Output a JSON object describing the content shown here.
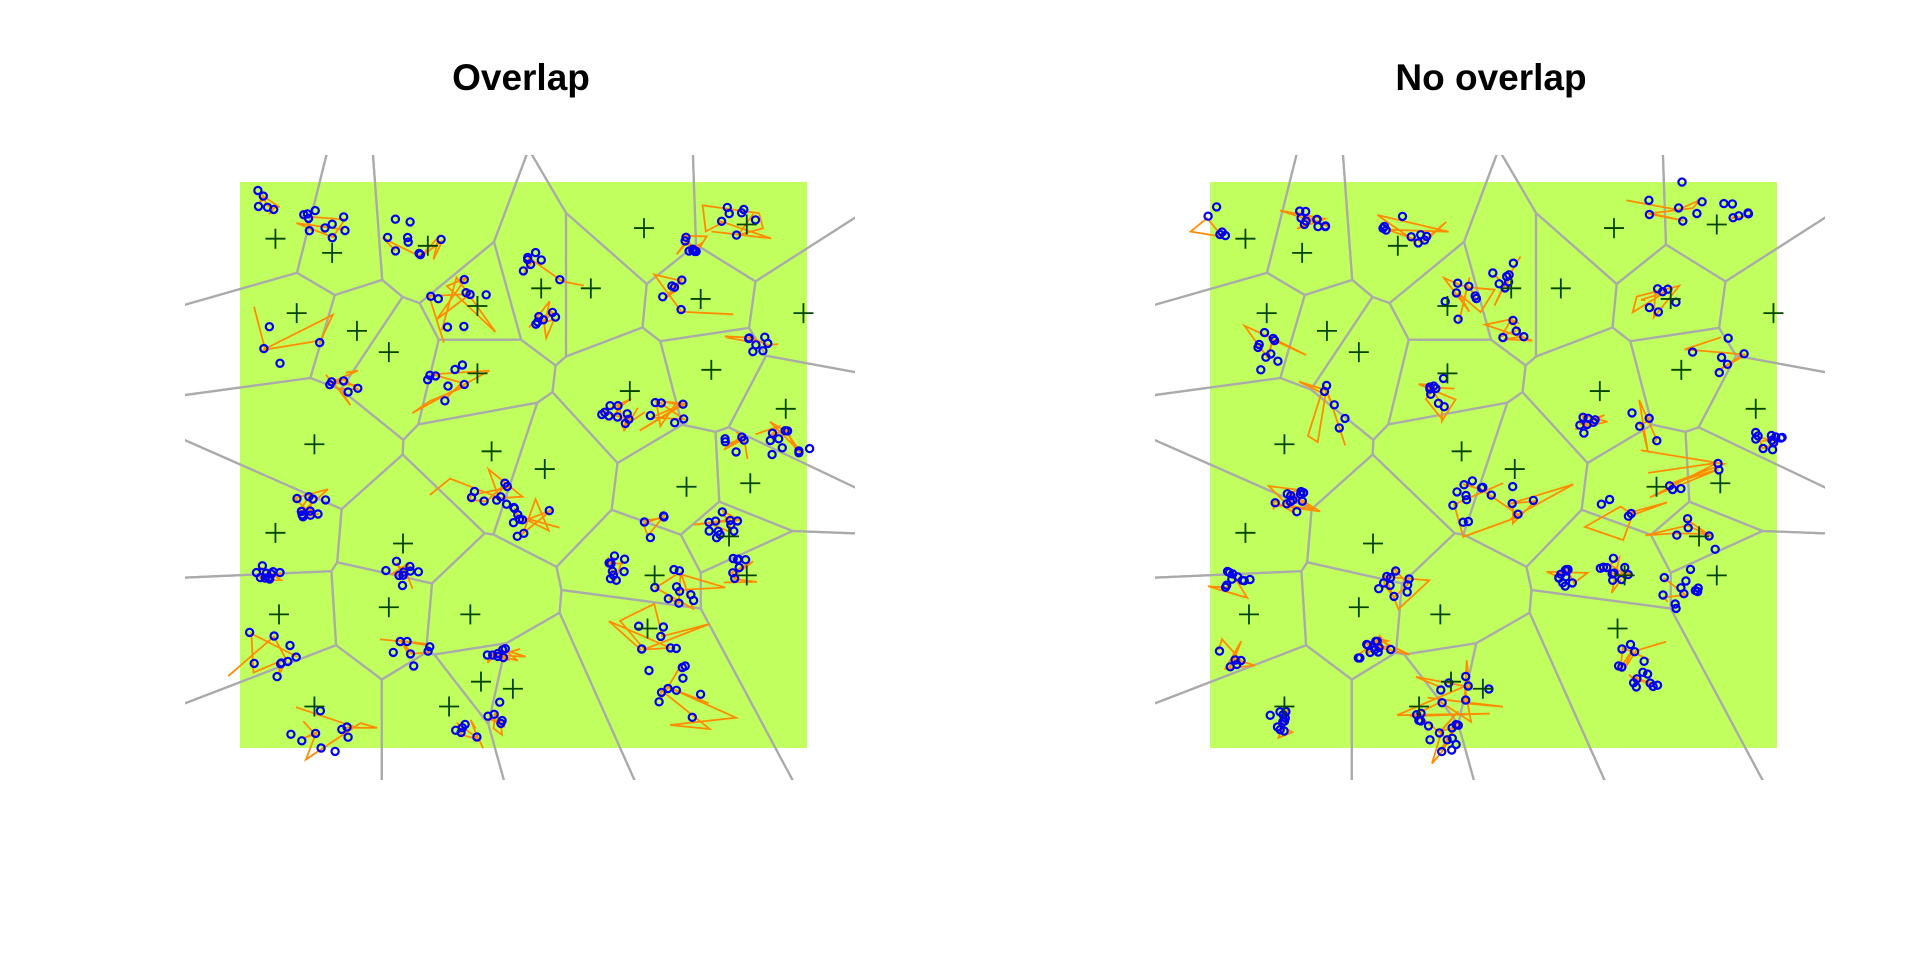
{
  "figure": {
    "background": "#ffffff",
    "region_fill": "#c0ff5e",
    "cell_edge_color": "#aaaaaa",
    "path_color": "#ff8c00",
    "point_color": "#0000ee",
    "center_marker_color": "#004400"
  },
  "panels": [
    {
      "title": "Overlap",
      "seed": 11,
      "centers": [
        [
          1,
          1.6
        ],
        [
          2.6,
          2.0
        ],
        [
          5.3,
          1.8
        ],
        [
          9.9,
          3.0
        ],
        [
          11.4,
          1.3
        ],
        [
          14.3,
          1.2
        ],
        [
          1.6,
          3.7
        ],
        [
          3.3,
          4.2
        ],
        [
          6.7,
          3.5
        ],
        [
          8.5,
          3.0
        ],
        [
          13.0,
          3.3
        ],
        [
          15.9,
          3.7
        ],
        [
          4.2,
          4.8
        ],
        [
          6.7,
          5.4
        ],
        [
          11.0,
          5.9
        ],
        [
          13.3,
          5.3
        ],
        [
          15.4,
          6.4
        ],
        [
          2.1,
          7.4
        ],
        [
          7.1,
          7.6
        ],
        [
          8.6,
          8.1
        ],
        [
          12.6,
          8.6
        ],
        [
          14.4,
          8.5
        ],
        [
          1.0,
          9.9
        ],
        [
          4.6,
          10.2
        ],
        [
          11.7,
          11.1
        ],
        [
          13.8,
          10.0
        ],
        [
          14.3,
          11.1
        ],
        [
          1.1,
          12.2
        ],
        [
          4.2,
          12.0
        ],
        [
          6.5,
          12.2
        ],
        [
          11.5,
          12.6
        ],
        [
          6.8,
          14.1
        ],
        [
          2.1,
          14.8
        ],
        [
          5.9,
          14.8
        ],
        [
          7.7,
          14.3
        ]
      ],
      "clusters": [
        [
          0.6,
          0.6
        ],
        [
          2.3,
          1.2
        ],
        [
          5.0,
          1.5
        ],
        [
          8.5,
          2.5
        ],
        [
          12.7,
          1.8
        ],
        [
          14.1,
          1.0
        ],
        [
          1.4,
          4.6
        ],
        [
          2.9,
          5.6
        ],
        [
          6.0,
          5.7
        ],
        [
          8.7,
          3.8
        ],
        [
          12.6,
          3.2
        ],
        [
          14.5,
          4.6
        ],
        [
          6.1,
          3.4
        ],
        [
          10.6,
          6.6
        ],
        [
          12.1,
          6.5
        ],
        [
          14.0,
          7.4
        ],
        [
          15.5,
          7.4
        ],
        [
          2.0,
          9.1
        ],
        [
          7.0,
          8.9
        ],
        [
          8.0,
          9.3
        ],
        [
          11.8,
          9.6
        ],
        [
          13.6,
          9.7
        ],
        [
          0.8,
          11.0
        ],
        [
          4.6,
          11.1
        ],
        [
          10.6,
          10.9
        ],
        [
          12.4,
          11.4
        ],
        [
          14.1,
          10.9
        ],
        [
          0.8,
          13.3
        ],
        [
          4.8,
          13.2
        ],
        [
          7.3,
          13.4
        ],
        [
          11.5,
          13.1
        ],
        [
          12.4,
          14.4
        ],
        [
          2.3,
          15.4
        ],
        [
          6.4,
          15.6
        ],
        [
          7.3,
          15.0
        ]
      ]
    },
    {
      "title": "No overlap",
      "seed": 23,
      "centers": [
        [
          1,
          1.6
        ],
        [
          2.6,
          2.0
        ],
        [
          5.3,
          1.8
        ],
        [
          9.9,
          3.0
        ],
        [
          11.4,
          1.3
        ],
        [
          14.3,
          1.2
        ],
        [
          1.6,
          3.7
        ],
        [
          3.3,
          4.2
        ],
        [
          6.7,
          3.5
        ],
        [
          8.5,
          3.0
        ],
        [
          13.0,
          3.3
        ],
        [
          15.9,
          3.7
        ],
        [
          4.2,
          4.8
        ],
        [
          6.7,
          5.4
        ],
        [
          11.0,
          5.9
        ],
        [
          13.3,
          5.3
        ],
        [
          15.4,
          6.4
        ],
        [
          2.1,
          7.4
        ],
        [
          7.1,
          7.6
        ],
        [
          8.6,
          8.1
        ],
        [
          12.6,
          8.6
        ],
        [
          14.4,
          8.5
        ],
        [
          1.0,
          9.9
        ],
        [
          4.6,
          10.2
        ],
        [
          11.7,
          11.1
        ],
        [
          13.8,
          10.0
        ],
        [
          14.3,
          11.1
        ],
        [
          1.1,
          12.2
        ],
        [
          4.2,
          12.0
        ],
        [
          6.5,
          12.2
        ],
        [
          11.5,
          12.6
        ],
        [
          6.8,
          14.1
        ],
        [
          2.1,
          14.8
        ],
        [
          5.9,
          14.8
        ],
        [
          7.7,
          14.3
        ]
      ],
      "clusters": [
        [
          0.3,
          1.1
        ],
        [
          2.9,
          1.1
        ],
        [
          5.5,
          1.4
        ],
        [
          8.5,
          2.7
        ],
        [
          13.1,
          0.6
        ],
        [
          14.8,
          0.8
        ],
        [
          1.4,
          4.8
        ],
        [
          3.2,
          6.4
        ],
        [
          6.6,
          6.0
        ],
        [
          8.6,
          4.2
        ],
        [
          12.7,
          3.3
        ],
        [
          14.3,
          4.8
        ],
        [
          6.8,
          3.2
        ],
        [
          10.6,
          6.9
        ],
        [
          12.1,
          7.0
        ],
        [
          13.6,
          8.2
        ],
        [
          15.8,
          7.2
        ],
        [
          2.3,
          9.0
        ],
        [
          7.2,
          9.0
        ],
        [
          8.9,
          9.2
        ],
        [
          11.6,
          9.5
        ],
        [
          13.8,
          10.0
        ],
        [
          0.7,
          11.3
        ],
        [
          5.2,
          11.4
        ],
        [
          10.1,
          11.2
        ],
        [
          11.4,
          11.0
        ],
        [
          13.4,
          11.5
        ],
        [
          0.6,
          13.4
        ],
        [
          4.7,
          13.3
        ],
        [
          7.4,
          14.2
        ],
        [
          11.7,
          13.3
        ],
        [
          12.3,
          14.1
        ],
        [
          2.0,
          15.2
        ],
        [
          6.4,
          15.2
        ],
        [
          6.8,
          15.7
        ]
      ]
    }
  ]
}
